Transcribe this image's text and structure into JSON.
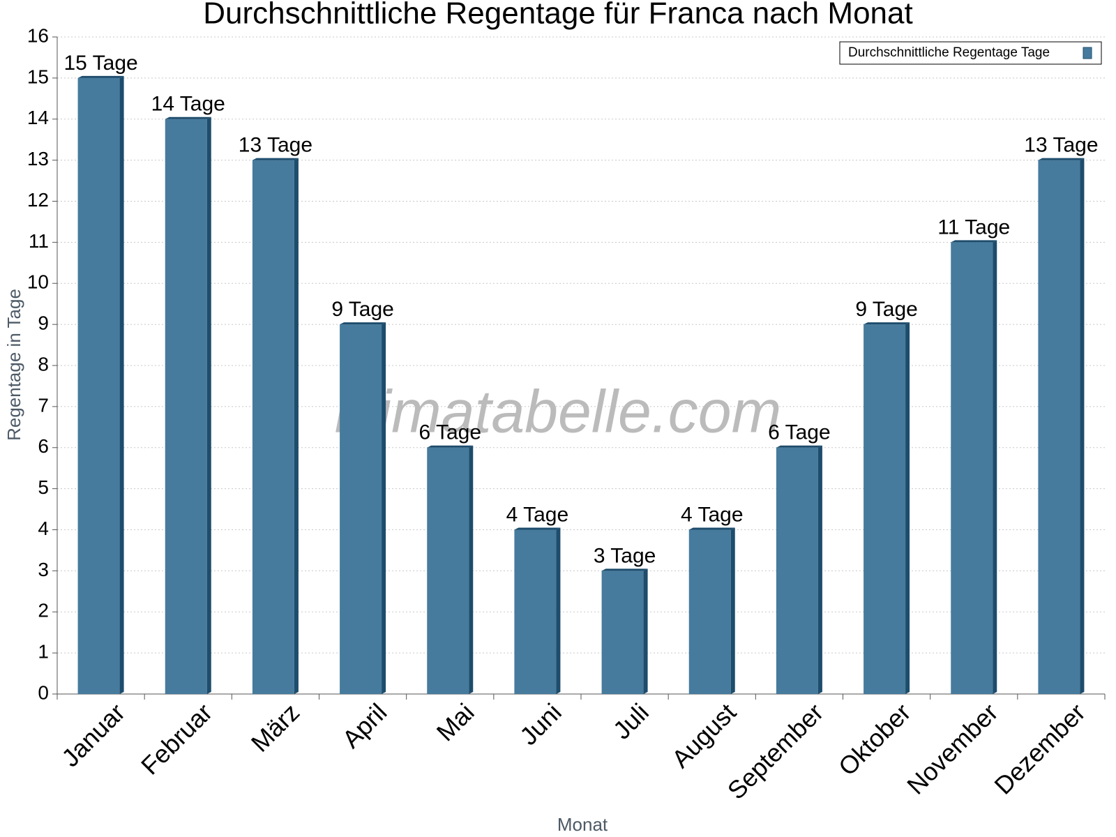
{
  "chart_data": {
    "type": "bar",
    "title": "Durchschnittliche Regentage für Franca nach Monat",
    "x_label": "Monat",
    "y_label": "Regentage in Tage",
    "watermark": "klimatabelle.com",
    "categories": [
      "Januar",
      "Februar",
      "März",
      "April",
      "Mai",
      "Juni",
      "Juli",
      "August",
      "September",
      "Oktober",
      "November",
      "Dezember"
    ],
    "series": [
      {
        "name": "Durchschnittliche Regentage Tage",
        "color": "#467b9d",
        "values": [
          15,
          14,
          13,
          9,
          6,
          4,
          3,
          4,
          6,
          9,
          11,
          13
        ],
        "value_labels": [
          "15 Tage",
          "14 Tage",
          "13 Tage",
          "9 Tage",
          "6 Tage",
          "4 Tage",
          "3 Tage",
          "4 Tage",
          "6 Tage",
          "9 Tage",
          "11 Tage",
          "13 Tage"
        ]
      }
    ],
    "ylim": [
      0,
      16
    ],
    "yticks": [
      0,
      1,
      2,
      3,
      4,
      5,
      6,
      7,
      8,
      9,
      10,
      11,
      12,
      13,
      14,
      15,
      16
    ],
    "grid": true,
    "legend": "top-right"
  }
}
